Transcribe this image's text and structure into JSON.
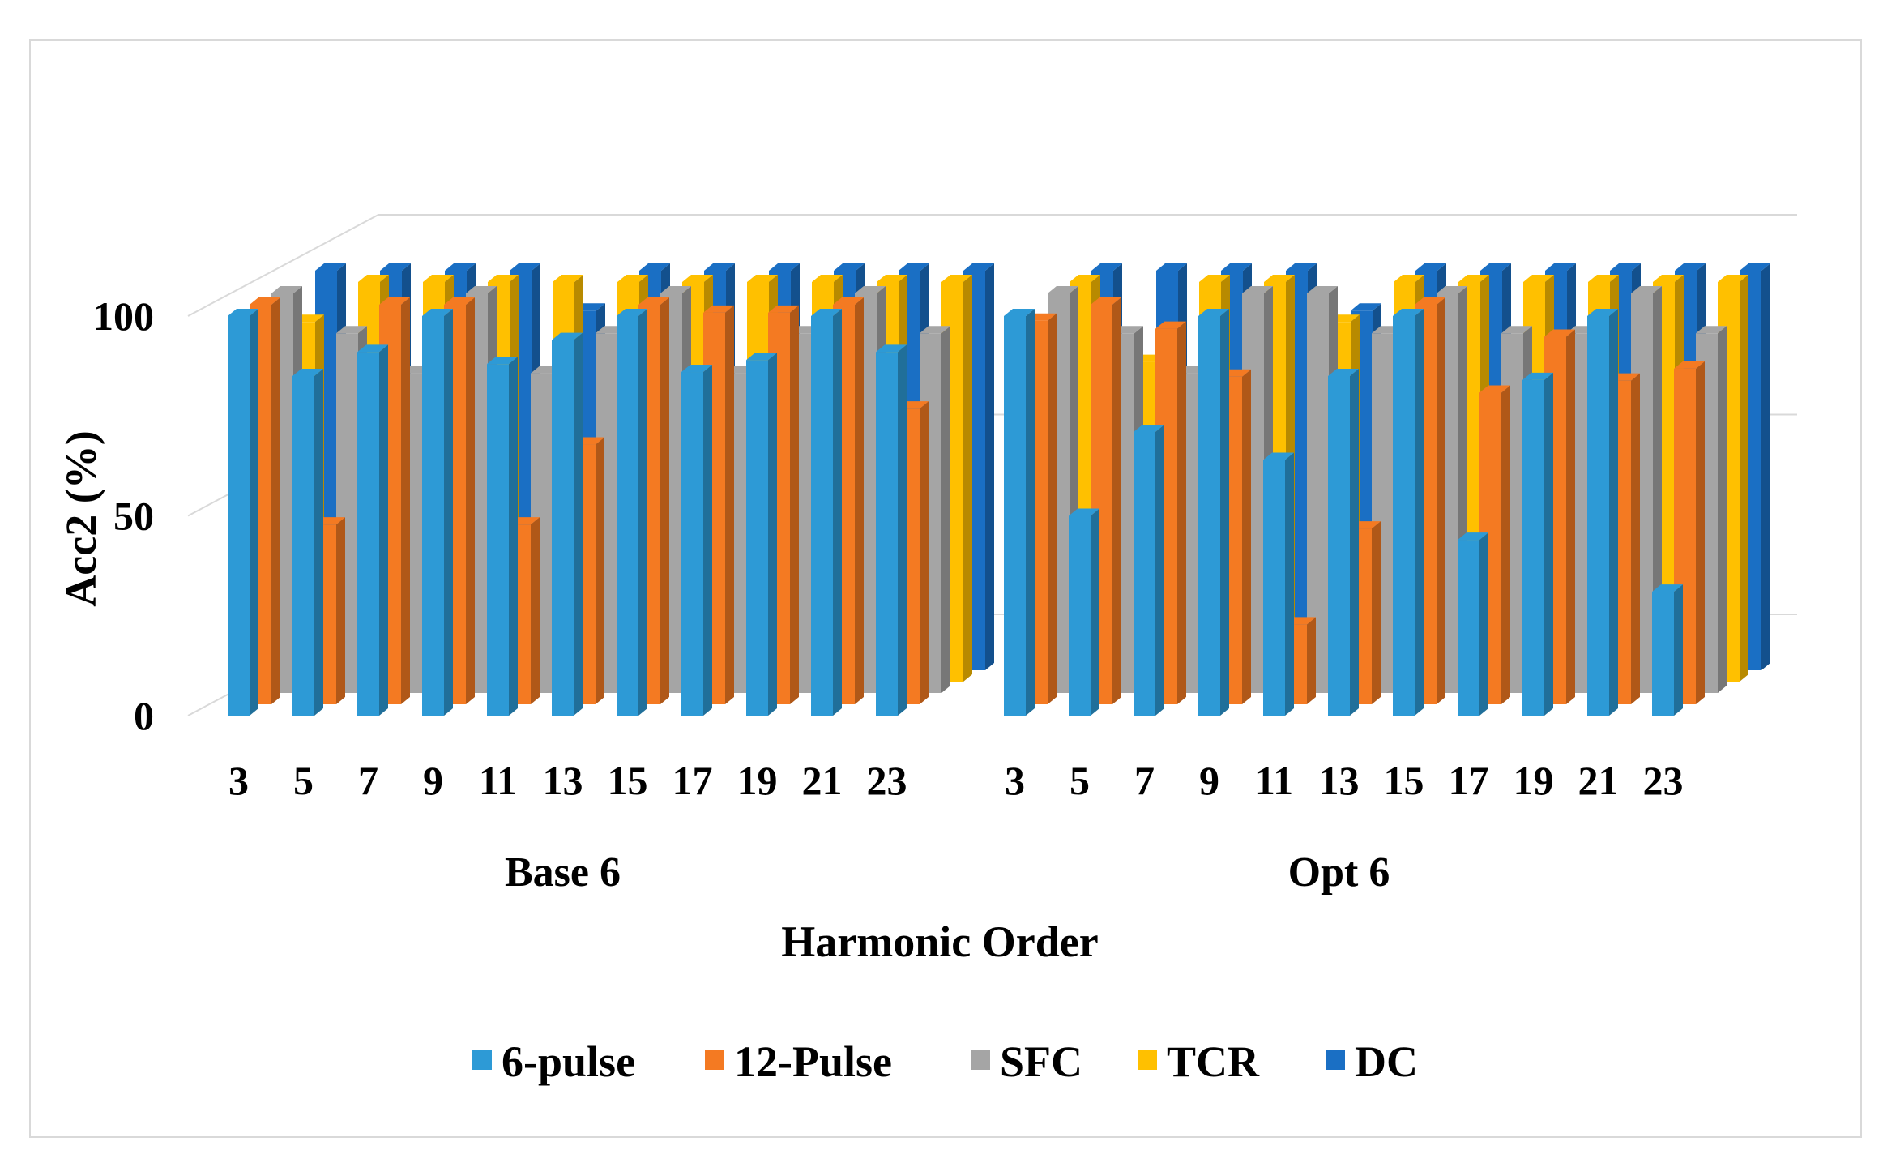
{
  "chart_data": {
    "type": "bar",
    "subtype": "3d-clustered-column",
    "title": "",
    "xlabel": "Harmonic Order",
    "ylabel": "Acc2 (%)",
    "ylim": [
      0,
      100
    ],
    "yticks": [
      0,
      50,
      100
    ],
    "groups": [
      "Base 6",
      "Opt 6"
    ],
    "categories": [
      "3",
      "5",
      "7",
      "9",
      "11",
      "13",
      "15",
      "17",
      "19",
      "21",
      "23"
    ],
    "legend_position": "bottom",
    "series": [
      {
        "name": "6-pulse",
        "color": "#2d9ad6",
        "values": {
          "Base 6": [
            100,
            85,
            91,
            100,
            88,
            94,
            100,
            86,
            89,
            100,
            91
          ],
          "Opt 6": [
            100,
            50,
            71,
            100,
            64,
            85,
            100,
            44,
            84,
            100,
            31
          ]
        }
      },
      {
        "name": "12-Pulse",
        "color": "#f47a22",
        "values": {
          "Base 6": [
            100,
            45,
            100,
            100,
            45,
            65,
            100,
            98,
            98,
            100,
            74
          ],
          "Opt 6": [
            96,
            100,
            94,
            82,
            20,
            44,
            100,
            78,
            92,
            81,
            84
          ]
        }
      },
      {
        "name": "SFC",
        "color": "#a5a5a5",
        "values": {
          "Base 6": [
            100,
            90,
            80,
            100,
            80,
            90,
            100,
            80,
            90,
            100,
            90
          ],
          "Opt 6": [
            100,
            90,
            80,
            100,
            100,
            90,
            100,
            90,
            90,
            100,
            90
          ]
        }
      },
      {
        "name": "TCR",
        "color": "#ffc000",
        "values": {
          "Base 6": [
            90,
            100,
            100,
            100,
            100,
            100,
            100,
            100,
            100,
            100,
            100
          ],
          "Opt 6": [
            100,
            80,
            100,
            100,
            90,
            100,
            100,
            100,
            100,
            100,
            100
          ]
        }
      },
      {
        "name": "DC",
        "color": "#1a6fc4",
        "values": {
          "Base 6": [
            100,
            100,
            100,
            100,
            90,
            100,
            100,
            100,
            100,
            100,
            100
          ],
          "Opt 6": [
            100,
            100,
            100,
            100,
            90,
            100,
            100,
            100,
            100,
            100,
            100
          ]
        }
      }
    ]
  }
}
